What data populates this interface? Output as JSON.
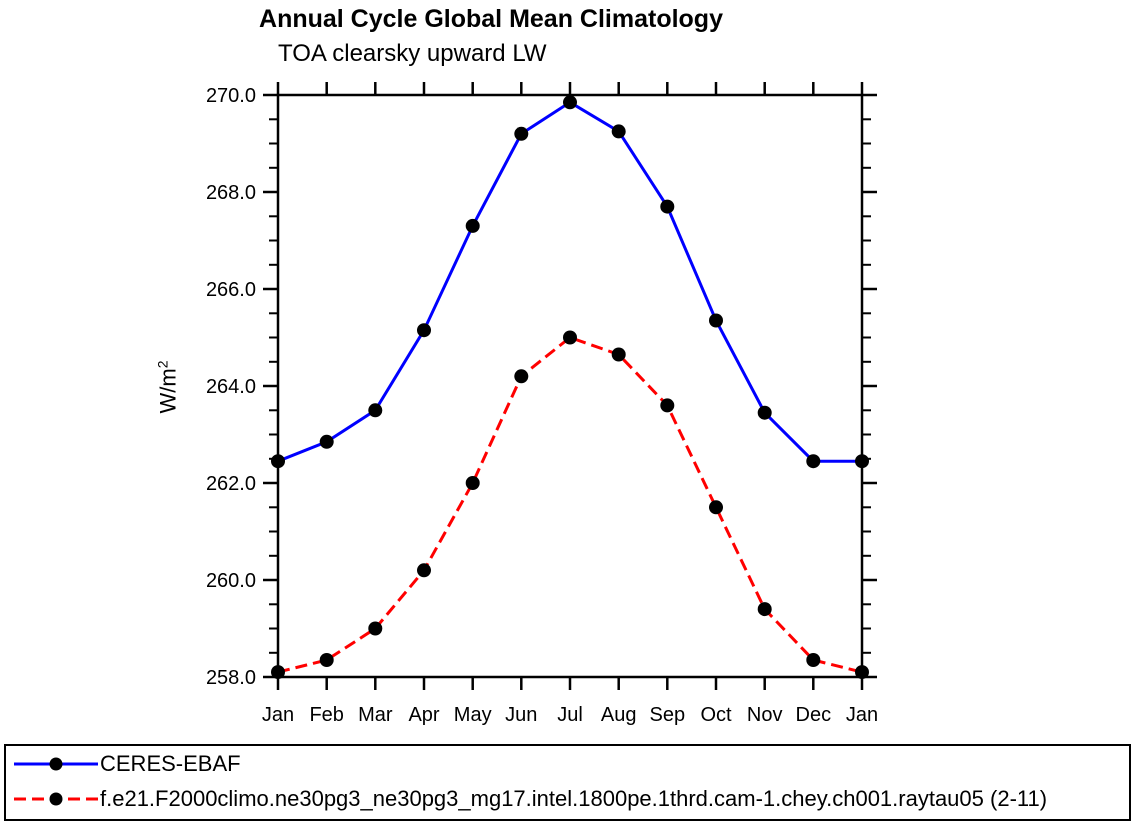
{
  "chart_data": {
    "type": "line",
    "title": "Annual Cycle Global Mean Climatology",
    "subtitle": "TOA clearsky upward LW",
    "ylabel": "W/m²",
    "ylabel_base": "W/m",
    "ylabel_exponent": "2",
    "categories": [
      "Jan",
      "Feb",
      "Mar",
      "Apr",
      "May",
      "Jun",
      "Jul",
      "Aug",
      "Sep",
      "Oct",
      "Nov",
      "Dec",
      "Jan"
    ],
    "ylim": [
      258.0,
      270.0
    ],
    "y_ticks": [
      {
        "v": 258.0,
        "label": "258.0"
      },
      {
        "v": 260.0,
        "label": "260.0"
      },
      {
        "v": 262.0,
        "label": "262.0"
      },
      {
        "v": 264.0,
        "label": "264.0"
      },
      {
        "v": 266.0,
        "label": "266.0"
      },
      {
        "v": 268.0,
        "label": "268.0"
      },
      {
        "v": 270.0,
        "label": "270.0"
      }
    ],
    "y_minor_step": 0.5,
    "grid": false,
    "legend_position": "bottom-left-boxed",
    "marker": {
      "shape": "circle",
      "color": "#000000"
    },
    "series": [
      {
        "name": "CERES-EBAF",
        "color": "#0000ff",
        "style": "solid",
        "values": [
          262.45,
          262.85,
          263.5,
          265.15,
          267.3,
          269.2,
          269.85,
          269.25,
          267.7,
          265.35,
          263.45,
          262.45,
          262.45
        ]
      },
      {
        "name": "f.e21.F2000climo.ne30pg3_ne30pg3_mg17.intel.1800pe.1thrd.cam-1.chey.ch001.raytau05 (2-11)",
        "color": "#ff0000",
        "style": "dashed",
        "values": [
          258.1,
          258.35,
          259.0,
          260.2,
          262.0,
          264.2,
          265.0,
          264.65,
          263.6,
          261.5,
          259.4,
          258.35,
          258.1
        ]
      }
    ]
  }
}
